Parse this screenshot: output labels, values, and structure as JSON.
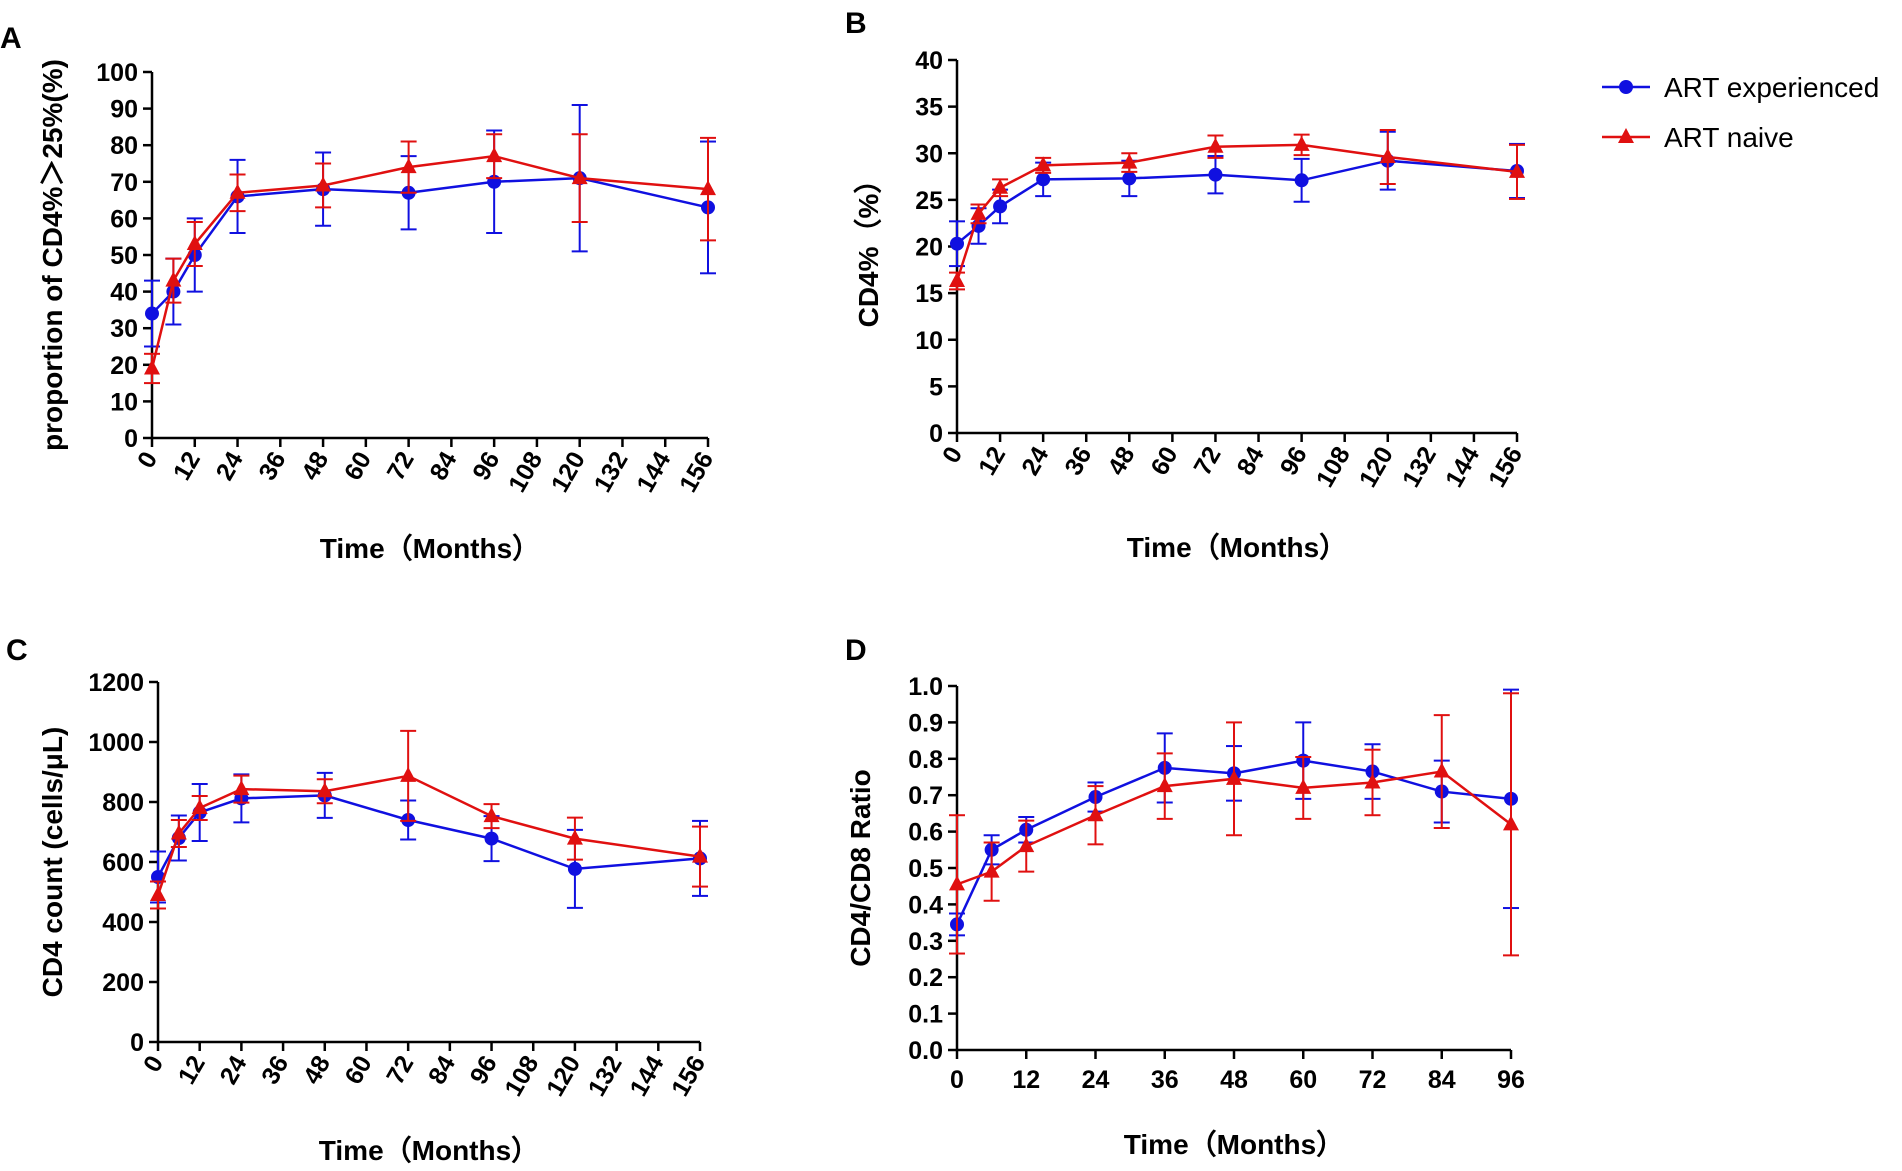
{
  "colors": {
    "art_experienced": "#1010e0",
    "art_naive": "#e01010",
    "axis": "#000000"
  },
  "legend": {
    "items": [
      {
        "label": "ART experienced",
        "color": "#1010e0",
        "marker": "circle"
      },
      {
        "label": "ART naive",
        "color": "#e01010",
        "marker": "triangle"
      }
    ]
  },
  "chart_data": [
    {
      "panel": "A",
      "type": "line",
      "ylabel": "proportion of CD4%＞25%(%)",
      "xlabel": "Time（Months）",
      "xlim": [
        0,
        156
      ],
      "ylim": [
        0,
        100
      ],
      "xticks": [
        0,
        12,
        24,
        36,
        48,
        60,
        72,
        84,
        96,
        108,
        120,
        132,
        144,
        156
      ],
      "yticks": [
        0,
        10,
        20,
        30,
        40,
        50,
        60,
        70,
        80,
        90,
        100
      ],
      "xtick_rotation": -60,
      "series": [
        {
          "name": "ART experienced",
          "x": [
            0,
            6,
            12,
            24,
            48,
            72,
            96,
            120,
            156
          ],
          "y": [
            34,
            40,
            50,
            66,
            68,
            67,
            70,
            71,
            63
          ],
          "err": [
            9,
            9,
            10,
            10,
            10,
            10,
            14,
            20,
            18
          ]
        },
        {
          "name": "ART naive",
          "x": [
            0,
            6,
            12,
            24,
            48,
            72,
            96,
            120,
            156
          ],
          "y": [
            19,
            43,
            53,
            67,
            69,
            74,
            77,
            71,
            68
          ],
          "err": [
            4,
            6,
            6,
            5,
            6,
            7,
            6,
            12,
            14
          ]
        }
      ]
    },
    {
      "panel": "B",
      "type": "line",
      "ylabel": "CD4%（%）",
      "xlabel": "Time（Months）",
      "xlim": [
        0,
        156
      ],
      "ylim": [
        0,
        40
      ],
      "xticks": [
        0,
        12,
        24,
        36,
        48,
        60,
        72,
        84,
        96,
        108,
        120,
        132,
        144,
        156
      ],
      "yticks": [
        0,
        5,
        10,
        15,
        20,
        25,
        30,
        35,
        40
      ],
      "xtick_rotation": -60,
      "series": [
        {
          "name": "ART experienced",
          "x": [
            0,
            6,
            12,
            24,
            48,
            72,
            96,
            120,
            156
          ],
          "y": [
            20.3,
            22.2,
            24.3,
            27.2,
            27.3,
            27.7,
            27.1,
            29.2,
            28.1
          ],
          "err": [
            2.4,
            1.9,
            1.8,
            1.8,
            1.9,
            2.0,
            2.3,
            3.1,
            2.9
          ]
        },
        {
          "name": "ART naive",
          "x": [
            0,
            6,
            12,
            24,
            48,
            72,
            96,
            120,
            156
          ],
          "y": [
            16.3,
            23.5,
            26.3,
            28.7,
            29.0,
            30.7,
            30.9,
            29.6,
            28.0
          ],
          "err": [
            0.9,
            1.0,
            0.9,
            0.8,
            1.0,
            1.2,
            1.1,
            2.9,
            2.9
          ]
        }
      ]
    },
    {
      "panel": "C",
      "type": "line",
      "ylabel": "CD4 count (cells/μL)",
      "xlabel": "Time（Months）",
      "xlim": [
        0,
        156
      ],
      "ylim": [
        0,
        1200
      ],
      "xticks": [
        0,
        12,
        24,
        36,
        48,
        60,
        72,
        84,
        96,
        108,
        120,
        132,
        144,
        156
      ],
      "yticks": [
        0,
        200,
        400,
        600,
        800,
        1000,
        1200
      ],
      "xtick_rotation": -60,
      "series": [
        {
          "name": "ART experienced",
          "x": [
            0,
            6,
            12,
            24,
            48,
            72,
            96,
            120,
            156
          ],
          "y": [
            550,
            680,
            765,
            812,
            822,
            740,
            678,
            577,
            612
          ],
          "err": [
            85,
            75,
            95,
            80,
            75,
            65,
            75,
            130,
            125
          ]
        },
        {
          "name": "ART naive",
          "x": [
            0,
            6,
            12,
            24,
            48,
            72,
            96,
            120,
            156
          ],
          "y": [
            490,
            695,
            780,
            843,
            836,
            887,
            753,
            678,
            618
          ],
          "err": [
            45,
            45,
            40,
            45,
            40,
            150,
            40,
            70,
            100
          ]
        }
      ]
    },
    {
      "panel": "D",
      "type": "line",
      "ylabel": "CD4/CD8 Ratio",
      "xlabel": "Time（Months）",
      "xlim": [
        0,
        96
      ],
      "ylim": [
        0,
        1.0
      ],
      "xticks": [
        0,
        12,
        24,
        36,
        48,
        60,
        72,
        84,
        96
      ],
      "yticks": [
        "0.0",
        "0.1",
        "0.2",
        "0.3",
        "0.4",
        "0.5",
        "0.6",
        "0.7",
        "0.8",
        "0.9",
        "1.0"
      ],
      "xtick_rotation": 0,
      "series": [
        {
          "name": "ART experienced",
          "x": [
            0,
            6,
            12,
            24,
            36,
            48,
            60,
            72,
            84,
            96
          ],
          "y": [
            0.345,
            0.55,
            0.605,
            0.695,
            0.775,
            0.76,
            0.795,
            0.765,
            0.71,
            0.69
          ],
          "err": [
            0.03,
            0.04,
            0.035,
            0.04,
            0.095,
            0.075,
            0.105,
            0.075,
            0.085,
            0.3
          ]
        },
        {
          "name": "ART naive",
          "x": [
            0,
            6,
            12,
            24,
            36,
            48,
            60,
            72,
            84,
            96
          ],
          "y": [
            0.455,
            0.49,
            0.56,
            0.645,
            0.725,
            0.745,
            0.72,
            0.735,
            0.765,
            0.62
          ],
          "err": [
            0.19,
            0.08,
            0.07,
            0.08,
            0.09,
            0.155,
            0.085,
            0.09,
            0.155,
            0.36
          ]
        }
      ]
    }
  ]
}
